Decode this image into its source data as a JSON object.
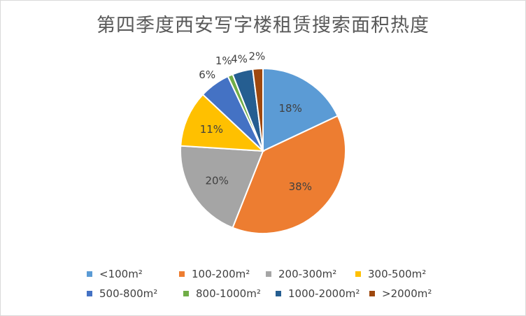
{
  "chart_data": {
    "type": "pie",
    "title": "第四季度西安写字楼租赁搜索面积热度",
    "categories": [
      "<100m²",
      "100-200m²",
      "200-300m²",
      "300-500m²",
      "500-800m²",
      "800-1000m²",
      "1000-2000m²",
      ">2000m²"
    ],
    "values": [
      18,
      38,
      20,
      11,
      6,
      1,
      4,
      2
    ],
    "data_labels": [
      "18%",
      "38%",
      "20%",
      "11%",
      "6%",
      "1%",
      "4%",
      "2%"
    ],
    "colors": [
      "#5B9BD5",
      "#ED7D31",
      "#A5A5A5",
      "#FFC000",
      "#4472C4",
      "#70AD47",
      "#255E91",
      "#9E480E"
    ],
    "legend_position": "bottom"
  }
}
